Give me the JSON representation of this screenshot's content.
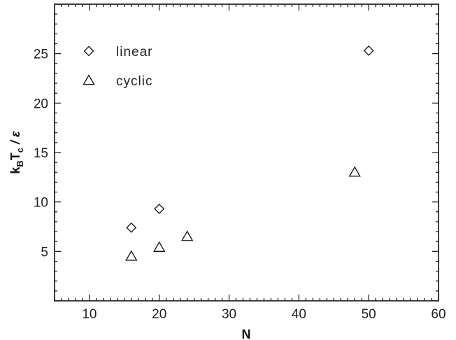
{
  "chart_data": {
    "type": "scatter",
    "title": "",
    "xlabel": "N",
    "ylabel": "k_B T_c / ε",
    "xlim": [
      5,
      60
    ],
    "ylim": [
      0,
      30
    ],
    "x_ticks": [
      10,
      20,
      30,
      40,
      50,
      60
    ],
    "y_ticks": [
      5,
      10,
      15,
      20,
      25
    ],
    "grid": false,
    "legend_position": "top-left",
    "series": [
      {
        "name": "linear",
        "marker": "diamond",
        "points": [
          {
            "x": 16,
            "y": 7.4
          },
          {
            "x": 20,
            "y": 9.3
          },
          {
            "x": 50,
            "y": 25.3
          }
        ]
      },
      {
        "name": "cyclic",
        "marker": "triangle",
        "points": [
          {
            "x": 16,
            "y": 4.5
          },
          {
            "x": 20,
            "y": 5.4
          },
          {
            "x": 24,
            "y": 6.5
          },
          {
            "x": 48,
            "y": 13.0
          }
        ]
      }
    ]
  }
}
